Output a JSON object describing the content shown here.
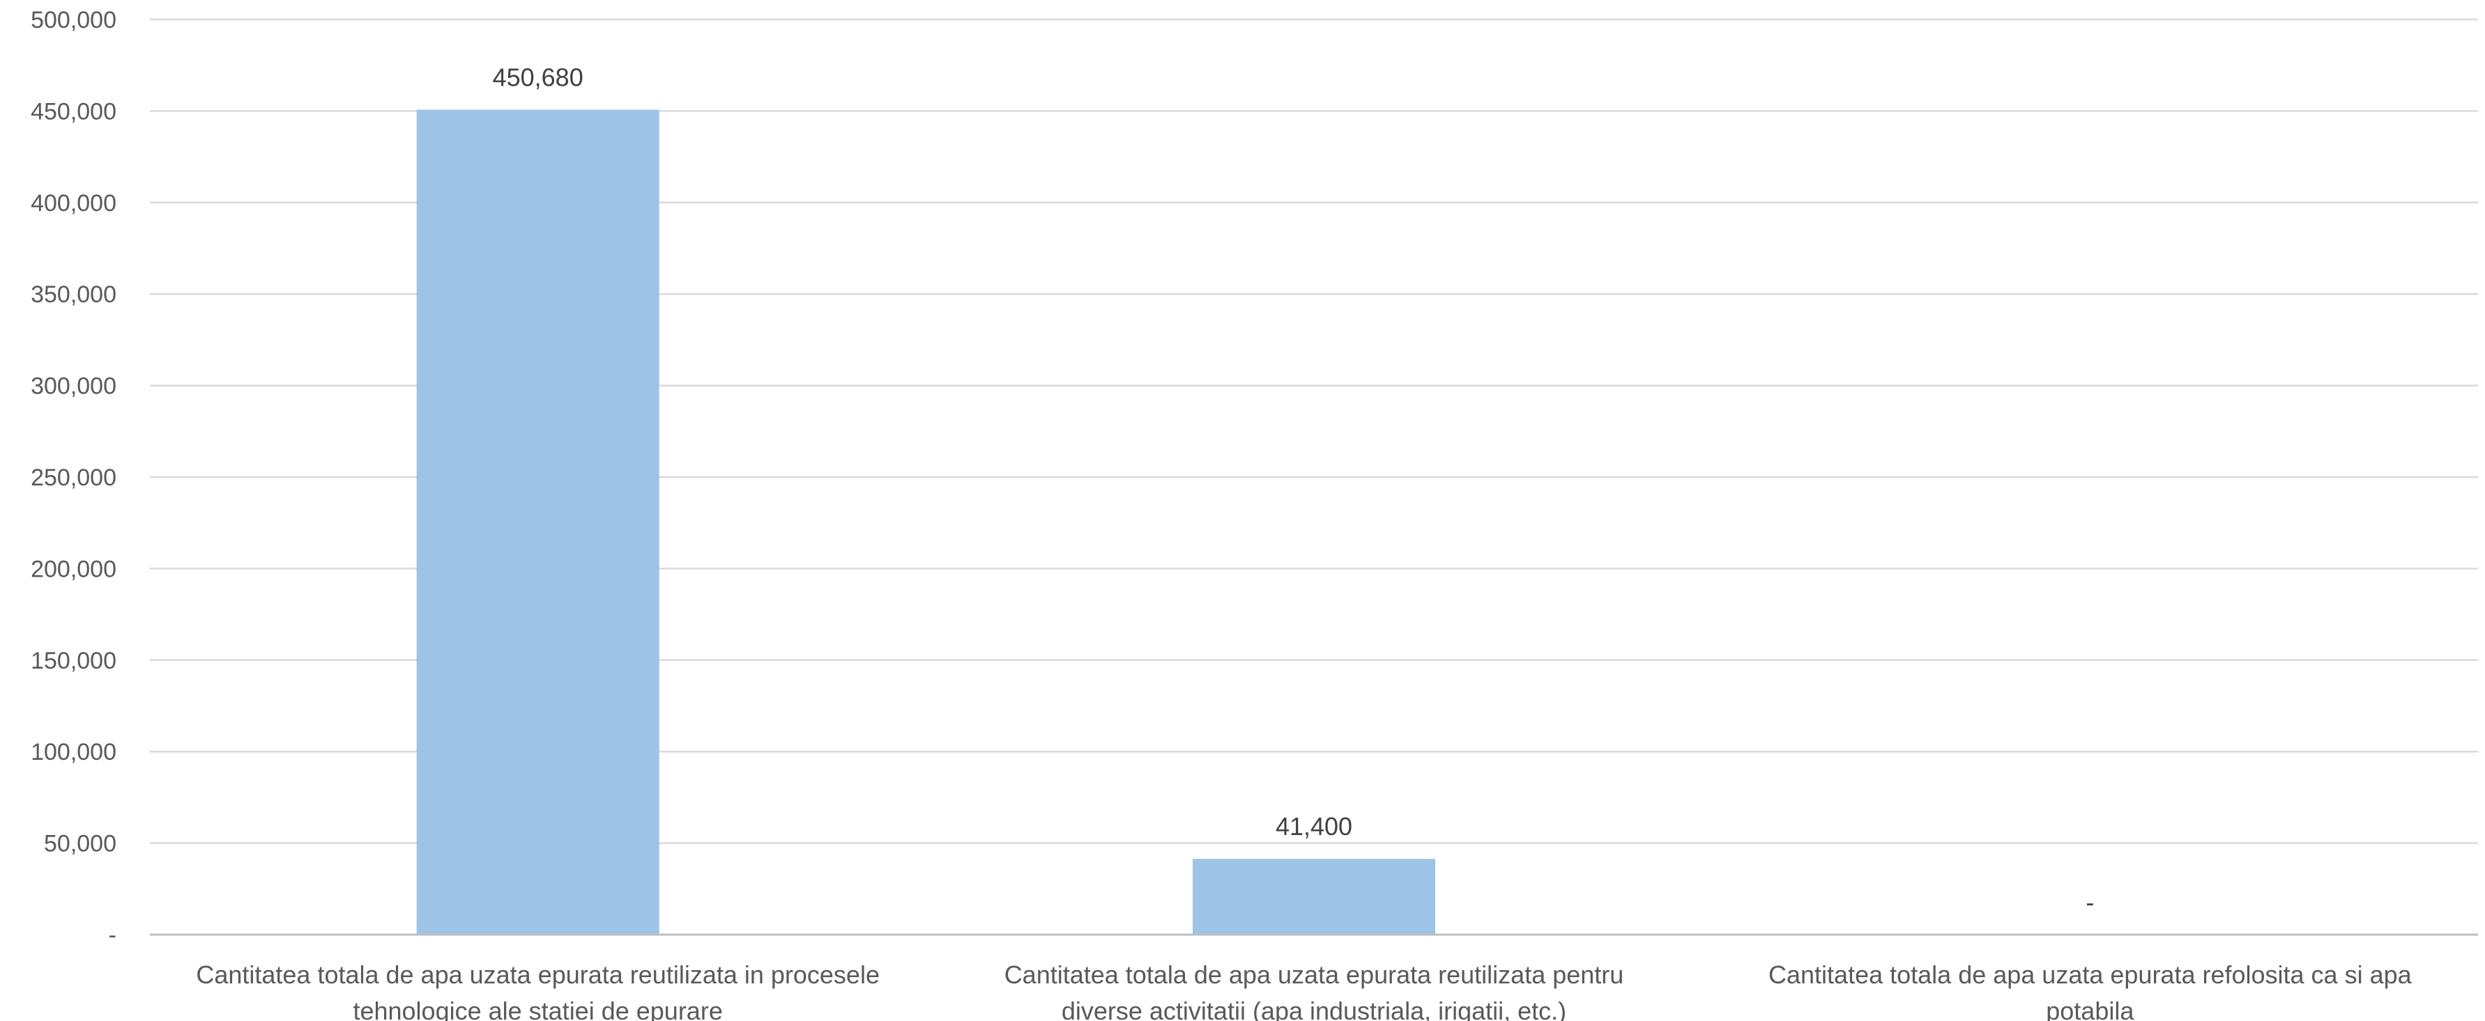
{
  "chart_data": {
    "type": "bar",
    "title": "",
    "xlabel": "",
    "ylabel": "",
    "ylim": [
      0,
      500000
    ],
    "yticks": [
      "-",
      "50,000",
      "100,000",
      "150,000",
      "200,000",
      "250,000",
      "300,000",
      "350,000",
      "400,000",
      "450,000",
      "500,000"
    ],
    "grid": true,
    "bar_color": "#9dc3e6",
    "categories": [
      {
        "label": "Cantitatea totala de apa uzata epurata reutilizata in procesele tehnologice ale statiei de epurare",
        "lines": [
          "Cantitatea totala de apa uzata epurata reutilizata in procesele",
          "tehnologice ale statiei de epurare"
        ]
      },
      {
        "label": "Cantitatea totala de apa uzata epurata reutilizata pentru diverse activitatii (apa industriala, irigatii, etc.)",
        "lines": [
          "Cantitatea totala de apa uzata epurata reutilizata pentru",
          "diverse activitatii (apa industriala, irigatii, etc.)"
        ]
      },
      {
        "label": "Cantitatea totala de apa uzata epurata refolosita ca si apa potabila",
        "lines": [
          "Cantitatea totala de apa uzata epurata refolosita ca si apa",
          "potabila"
        ]
      }
    ],
    "values": [
      450680,
      41400,
      0
    ],
    "data_labels": [
      "450,680",
      "41,400",
      "-"
    ]
  }
}
